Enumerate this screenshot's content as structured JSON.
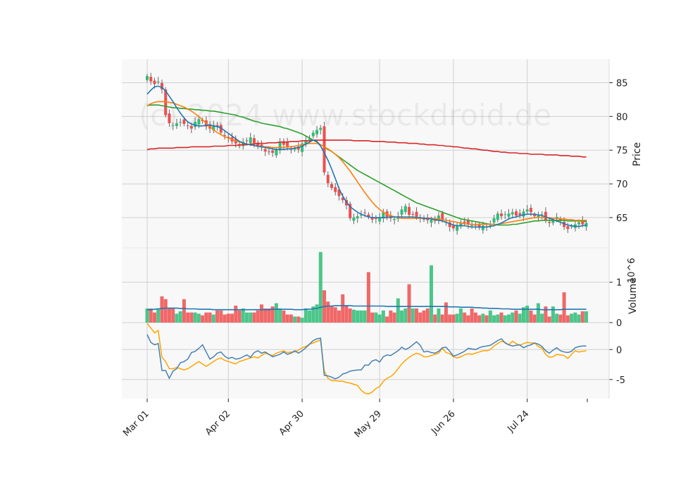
{
  "chart_data": [
    {
      "type": "candlestick",
      "watermark": "(c) 2024 www.stockdroid.de",
      "ylabel": "Price",
      "ylim": [
        60.5,
        88.5
      ],
      "yticks": [
        65,
        70,
        75,
        80,
        85
      ],
      "x_tick_labels": [
        "Mar 01",
        "Apr 02",
        "Apr 30",
        "May 29",
        "Jun 26",
        "Jul 24"
      ],
      "x_tick_index": [
        0,
        22,
        42,
        63,
        83,
        103
      ],
      "grid": true,
      "colors": {
        "up": "#2ebd77",
        "down": "#ef4f4f",
        "ma_fast": "#1f77b4",
        "ma_mid": "#ff7f0e",
        "ma_slow": "#2ca02c",
        "ma_long": "#d62728",
        "panel_bg": "#f8f8f8",
        "grid": "#d0d0d0"
      },
      "close": [
        86.0,
        85.2,
        84.8,
        85.2,
        84.0,
        80.2,
        79.0,
        78.7,
        79.0,
        79.2,
        78.9,
        78.6,
        78.2,
        79.2,
        79.6,
        79.3,
        78.5,
        78.2,
        78.7,
        78.5,
        77.6,
        77.1,
        76.8,
        76.3,
        76.0,
        75.6,
        76.2,
        76.4,
        76.9,
        76.0,
        75.5,
        75.4,
        74.8,
        74.7,
        74.6,
        75.1,
        76.2,
        75.8,
        75.4,
        75.1,
        75.3,
        75.1,
        76.0,
        76.4,
        76.7,
        77.6,
        78.0,
        78.3,
        71.7,
        70.1,
        69.4,
        68.8,
        68.2,
        67.6,
        66.8,
        64.9,
        65.0,
        65.2,
        65.4,
        65.7,
        65.1,
        64.7,
        64.8,
        65.0,
        65.8,
        65.0,
        64.9,
        64.8,
        65.2,
        66.2,
        66.7,
        65.4,
        65.5,
        65.1,
        65.0,
        64.7,
        64.6,
        64.7,
        64.5,
        65.3,
        64.6,
        64.3,
        63.6,
        63.4,
        63.8,
        64.3,
        64.2,
        64.0,
        63.9,
        63.8,
        63.5,
        63.8,
        63.7,
        63.9,
        64.9,
        65.6,
        65.2,
        65.5,
        65.6,
        65.8,
        65.3,
        65.4,
        65.9,
        66.2,
        65.8,
        65.2,
        65.3,
        65.5,
        64.6,
        64.2,
        64.6,
        65.1,
        64.5,
        63.6,
        63.3,
        63.7,
        64.0,
        64.3,
        64.0,
        64.2
      ],
      "ma_fast": [
        83.3,
        83.9,
        84.4,
        84.5,
        84.3,
        83.8,
        83.0,
        82.2,
        81.3,
        80.5,
        79.8,
        79.2,
        78.9,
        78.7,
        78.6,
        78.6,
        78.7,
        78.7,
        78.6,
        78.5,
        78.3,
        77.9,
        77.5,
        77.1,
        76.7,
        76.3,
        76.1,
        75.9,
        75.8,
        75.7,
        75.6,
        75.5,
        75.4,
        75.3,
        75.2,
        75.1,
        75.1,
        75.1,
        75.2,
        75.2,
        75.3,
        75.4,
        75.6,
        75.9,
        76.2,
        76.5,
        76.3,
        75.6,
        74.6,
        73.5,
        72.2,
        70.8,
        69.3,
        68.2,
        67.3,
        66.6,
        66.2,
        65.8,
        65.5,
        65.3,
        65.1,
        65.0,
        65.0,
        65.0,
        65.0,
        65.0,
        65.1,
        65.1,
        65.1,
        65.1,
        65.1,
        65.1,
        65.1,
        65.0,
        65.0,
        64.9,
        64.9,
        64.8,
        64.7,
        64.6,
        64.5,
        64.3,
        64.1,
        63.9,
        63.8,
        63.8,
        63.8,
        63.7,
        63.6,
        63.6,
        63.6,
        63.6,
        63.6,
        63.7,
        63.8,
        64.0,
        64.2,
        64.5,
        64.8,
        65.0,
        65.1,
        65.3,
        65.4,
        65.5,
        65.5,
        65.5,
        65.4,
        65.3,
        65.1,
        64.9,
        64.7,
        64.5,
        64.3,
        64.1,
        63.9,
        63.8,
        63.7,
        63.7,
        63.8,
        63.9
      ],
      "ma_mid": [
        81.6,
        81.9,
        82.1,
        82.2,
        82.2,
        82.2,
        82.1,
        82.0,
        81.8,
        81.6,
        81.4,
        81.1,
        80.8,
        80.4,
        80.0,
        79.5,
        79.0,
        78.5,
        78.0,
        77.6,
        77.3,
        77.0,
        76.8,
        76.6,
        76.4,
        76.2,
        76.1,
        75.9,
        75.8,
        75.7,
        75.6,
        75.6,
        75.5,
        75.5,
        75.4,
        75.4,
        75.4,
        75.4,
        75.5,
        75.5,
        75.6,
        75.7,
        75.8,
        75.9,
        76.0,
        76.0,
        76.0,
        75.8,
        75.5,
        75.2,
        74.8,
        74.4,
        73.9,
        73.3,
        72.6,
        71.9,
        71.1,
        70.3,
        69.5,
        68.7,
        68.0,
        67.3,
        66.7,
        66.2,
        65.8,
        65.5,
        65.3,
        65.1,
        65.0,
        64.9,
        64.9,
        64.9,
        64.9,
        64.9,
        64.9,
        64.9,
        64.9,
        64.9,
        64.8,
        64.8,
        64.7,
        64.6,
        64.5,
        64.4,
        64.3,
        64.2,
        64.1,
        64.0,
        64.0,
        64.0,
        64.0,
        64.0,
        64.0,
        64.0,
        64.0,
        64.0,
        64.1,
        64.2,
        64.3,
        64.4,
        64.5,
        64.6,
        64.7,
        64.8,
        64.9,
        65.0,
        65.0,
        65.0,
        65.0,
        65.0,
        64.9,
        64.9,
        64.8,
        64.8,
        64.7,
        64.7,
        64.6,
        64.6,
        64.6,
        64.6
      ],
      "ma_slow": [
        81.6,
        81.7,
        81.7,
        81.7,
        81.6,
        81.5,
        81.4,
        81.3,
        81.3,
        81.2,
        81.2,
        81.1,
        81.1,
        81.0,
        81.0,
        80.9,
        80.9,
        80.8,
        80.8,
        80.7,
        80.6,
        80.5,
        80.4,
        80.3,
        80.2,
        80.0,
        79.9,
        79.7,
        79.5,
        79.3,
        79.2,
        79.0,
        78.9,
        78.8,
        78.7,
        78.6,
        78.5,
        78.3,
        78.2,
        78.0,
        77.8,
        77.6,
        77.4,
        77.1,
        76.8,
        76.5,
        76.2,
        75.8,
        75.5,
        75.1,
        74.8,
        74.4,
        74.0,
        73.6,
        73.2,
        72.8,
        72.4,
        72.0,
        71.7,
        71.4,
        71.1,
        70.8,
        70.5,
        70.2,
        69.9,
        69.6,
        69.3,
        69.0,
        68.7,
        68.4,
        68.1,
        67.8,
        67.5,
        67.2,
        67.0,
        66.8,
        66.6,
        66.4,
        66.2,
        66.0,
        65.8,
        65.6,
        65.4,
        65.2,
        65.0,
        64.8,
        64.7,
        64.6,
        64.5,
        64.4,
        64.3,
        64.2,
        64.1,
        64.0,
        64.0,
        63.9,
        63.9,
        63.9,
        63.9,
        64.0,
        64.0,
        64.1,
        64.2,
        64.3,
        64.4,
        64.5,
        64.5,
        64.6,
        64.6,
        64.6,
        64.6,
        64.6,
        64.6,
        64.6,
        64.5,
        64.5,
        64.5,
        64.5,
        64.5,
        64.4
      ],
      "ma_long": [
        75.1,
        75.2,
        75.2,
        75.3,
        75.3,
        75.3,
        75.3,
        75.3,
        75.4,
        75.4,
        75.4,
        75.4,
        75.5,
        75.5,
        75.5,
        75.5,
        75.5,
        75.5,
        75.6,
        75.6,
        75.6,
        75.6,
        75.7,
        75.7,
        75.7,
        75.8,
        75.8,
        75.8,
        75.9,
        75.9,
        76.0,
        76.0,
        76.0,
        76.1,
        76.1,
        76.1,
        76.2,
        76.2,
        76.2,
        76.3,
        76.3,
        76.3,
        76.4,
        76.4,
        76.4,
        76.5,
        76.5,
        76.5,
        76.5,
        76.5,
        76.5,
        76.5,
        76.5,
        76.5,
        76.5,
        76.5,
        76.4,
        76.4,
        76.4,
        76.4,
        76.4,
        76.3,
        76.3,
        76.3,
        76.3,
        76.2,
        76.2,
        76.2,
        76.1,
        76.1,
        76.1,
        76.0,
        76.0,
        76.0,
        75.9,
        75.9,
        75.8,
        75.8,
        75.8,
        75.7,
        75.7,
        75.6,
        75.6,
        75.5,
        75.5,
        75.4,
        75.3,
        75.3,
        75.2,
        75.2,
        75.1,
        75.0,
        75.0,
        74.9,
        74.8,
        74.8,
        74.7,
        74.7,
        74.6,
        74.6,
        74.6,
        74.5,
        74.5,
        74.5,
        74.4,
        74.4,
        74.4,
        74.4,
        74.3,
        74.3,
        74.3,
        74.3,
        74.2,
        74.2,
        74.2,
        74.1,
        74.1,
        74.1,
        74.0,
        74.0
      ]
    },
    {
      "type": "bar",
      "ylabel": "Volume",
      "yscale_label": "10^6",
      "ylim": [
        0,
        1.85
      ],
      "yticks": [
        0,
        1
      ],
      "volume": [
        0.35,
        0.35,
        0.25,
        0.35,
        0.65,
        0.58,
        0.35,
        0.35,
        0.22,
        0.28,
        0.58,
        0.25,
        0.25,
        0.25,
        0.22,
        0.18,
        0.25,
        0.25,
        0.2,
        0.3,
        0.3,
        0.2,
        0.22,
        0.22,
        0.42,
        0.3,
        0.35,
        0.25,
        0.25,
        0.25,
        0.3,
        0.45,
        0.35,
        0.35,
        0.4,
        0.48,
        0.35,
        0.3,
        0.2,
        0.2,
        0.15,
        0.15,
        0.12,
        0.35,
        0.3,
        0.4,
        0.45,
        1.75,
        0.8,
        0.52,
        0.42,
        0.38,
        0.3,
        0.7,
        0.42,
        0.35,
        0.32,
        0.3,
        0.3,
        0.3,
        1.25,
        0.25,
        0.25,
        0.2,
        0.3,
        0.15,
        0.3,
        0.25,
        0.6,
        0.3,
        0.35,
        0.95,
        0.35,
        0.35,
        0.25,
        0.3,
        0.35,
        1.42,
        0.2,
        0.35,
        0.2,
        0.5,
        0.2,
        0.2,
        0.22,
        0.35,
        0.25,
        0.18,
        0.35,
        0.25,
        0.18,
        0.22,
        0.18,
        0.3,
        0.18,
        0.2,
        0.25,
        0.18,
        0.2,
        0.25,
        0.3,
        0.22,
        0.38,
        0.42,
        0.3,
        0.2,
        0.48,
        0.22,
        0.4,
        0.15,
        0.4,
        0.22,
        0.2,
        0.75,
        0.18,
        0.22,
        0.25,
        0.2,
        0.28,
        0.28
      ],
      "volume_ma": [
        0.32,
        0.32,
        0.33,
        0.34,
        0.35,
        0.36,
        0.36,
        0.36,
        0.36,
        0.35,
        0.35,
        0.34,
        0.34,
        0.34,
        0.33,
        0.33,
        0.33,
        0.33,
        0.32,
        0.32,
        0.32,
        0.32,
        0.32,
        0.32,
        0.32,
        0.32,
        0.32,
        0.32,
        0.32,
        0.32,
        0.32,
        0.32,
        0.32,
        0.32,
        0.33,
        0.33,
        0.33,
        0.33,
        0.33,
        0.33,
        0.32,
        0.32,
        0.32,
        0.33,
        0.33,
        0.34,
        0.35,
        0.38,
        0.4,
        0.41,
        0.41,
        0.42,
        0.42,
        0.42,
        0.42,
        0.42,
        0.41,
        0.41,
        0.41,
        0.41,
        0.41,
        0.41,
        0.41,
        0.41,
        0.41,
        0.4,
        0.4,
        0.4,
        0.4,
        0.4,
        0.4,
        0.4,
        0.4,
        0.4,
        0.4,
        0.4,
        0.4,
        0.4,
        0.4,
        0.4,
        0.4,
        0.4,
        0.39,
        0.39,
        0.39,
        0.38,
        0.38,
        0.38,
        0.38,
        0.37,
        0.37,
        0.36,
        0.36,
        0.35,
        0.35,
        0.35,
        0.34,
        0.34,
        0.34,
        0.33,
        0.33,
        0.33,
        0.33,
        0.33,
        0.33,
        0.33,
        0.33,
        0.32,
        0.32,
        0.32,
        0.32,
        0.32,
        0.32,
        0.33,
        0.33,
        0.33,
        0.33,
        0.33,
        0.33,
        0.33
      ]
    },
    {
      "type": "line",
      "ylim": [
        -8.2,
        4.5
      ],
      "yticks": [
        -5,
        0
      ],
      "series_blue": [
        2.5,
        1.2,
        0.8,
        1.0,
        -3.5,
        -3.5,
        -4.8,
        -3.6,
        -3.2,
        -2.2,
        -2.0,
        -1.6,
        -0.5,
        -0.3,
        0.2,
        0.8,
        -0.4,
        -1.6,
        -1.2,
        -0.6,
        -0.4,
        -1.1,
        -1.5,
        -1.3,
        -1.6,
        -1.5,
        -1.2,
        -0.9,
        -1.3,
        -0.5,
        -0.2,
        -0.6,
        -0.4,
        -0.8,
        -1.2,
        -1.0,
        -0.8,
        -0.4,
        -0.8,
        -0.6,
        -0.2,
        -0.6,
        -0.2,
        0.3,
        0.9,
        1.5,
        1.8,
        1.9,
        -4.3,
        -4.4,
        -4.6,
        -4.9,
        -4.6,
        -4.1,
        -3.9,
        -3.6,
        -3.5,
        -3.4,
        -3.4,
        -2.6,
        -2.6,
        -1.9,
        -1.7,
        -2.1,
        -1.2,
        -0.9,
        -1.0,
        -0.6,
        -0.2,
        0.4,
        0.0,
        0.3,
        0.8,
        1.3,
        0.7,
        -0.4,
        -0.3,
        -0.5,
        -0.6,
        -0.3,
        0.3,
        0.4,
        -0.3,
        -1.1,
        -0.9,
        -0.6,
        -0.3,
        0.2,
        0.1,
        0.0,
        0.3,
        0.5,
        0.6,
        0.7,
        1.1,
        1.5,
        1.8,
        1.1,
        0.8,
        0.6,
        0.7,
        0.8,
        0.3,
        0.6,
        0.8,
        1.1,
        0.9,
        0.5,
        -0.2,
        -0.6,
        -0.1,
        0.3,
        -0.2,
        -0.4,
        -0.5,
        -0.3,
        0.3,
        0.5,
        0.6,
        0.6
      ],
      "series_orange": [
        4.4,
        3.6,
        2.8,
        3.2,
        -1.3,
        -2.0,
        -3.2,
        -3.2,
        -3.0,
        -3.2,
        -3.4,
        -3.2,
        -2.8,
        -2.4,
        -2.0,
        -2.4,
        -2.8,
        -2.4,
        -2.0,
        -1.6,
        -1.4,
        -1.8,
        -2.0,
        -2.2,
        -2.4,
        -2.0,
        -1.8,
        -1.6,
        -1.4,
        -1.2,
        -1.4,
        -1.0,
        -0.6,
        -0.8,
        -1.0,
        -0.6,
        -0.4,
        -0.2,
        -0.5,
        -0.4,
        -0.4,
        -0.1,
        0.3,
        0.5,
        0.9,
        1.1,
        1.4,
        1.5,
        -3.6,
        -4.8,
        -5.2,
        -5.2,
        -5.3,
        -5.3,
        -5.5,
        -5.6,
        -5.8,
        -6.0,
        -6.8,
        -7.3,
        -7.4,
        -7.1,
        -6.5,
        -6.2,
        -5.3,
        -4.8,
        -4.5,
        -4.0,
        -3.2,
        -2.4,
        -1.8,
        -1.3,
        -0.9,
        -0.6,
        -0.8,
        -1.2,
        -1.2,
        -1.0,
        -0.8,
        -0.6,
        0.2,
        -0.5,
        -0.7,
        -1.2,
        -1.4,
        -1.2,
        -0.9,
        -0.7,
        -0.8,
        -0.6,
        -0.4,
        -0.2,
        -0.2,
        0.0,
        0.6,
        1.0,
        1.4,
        1.2,
        0.8,
        1.4,
        1.0,
        0.7,
        1.0,
        1.2,
        1.1,
        1.1,
        0.5,
        0.2,
        -0.8,
        -1.3,
        -1.2,
        -0.8,
        -0.9,
        -1.0,
        -1.5,
        -0.8,
        -0.2,
        -0.4,
        -0.3,
        -0.2
      ]
    }
  ]
}
